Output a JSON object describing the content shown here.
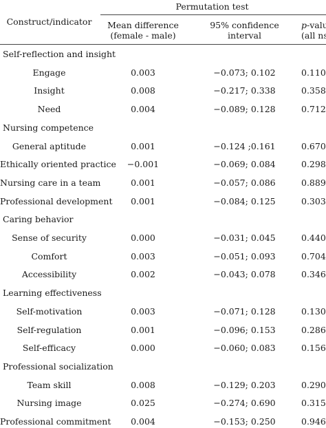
{
  "header": {
    "construct_label": "Construct/indicator",
    "permutation_label": "Permutation test",
    "col_mean_line1": "Mean difference",
    "col_mean_line2": "(female - male)",
    "col_ci_line1": "95% confidence",
    "col_ci_line2": "interval",
    "col_p_italic": "p",
    "col_p_rest": "-value",
    "col_p_line2": "(all ns)"
  },
  "sections": [
    {
      "title": "Self-reflection and insight",
      "rows": [
        {
          "indicator": "Engage",
          "mean": "0.003",
          "ci": "−0.073; 0.102",
          "p": "0.110"
        },
        {
          "indicator": "Insight",
          "mean": "0.008",
          "ci": "−0.217; 0.338",
          "p": "0.358"
        },
        {
          "indicator": "Need",
          "mean": "0.004",
          "ci": "−0.089; 0.128",
          "p": "0.712"
        }
      ]
    },
    {
      "title": "Nursing competence",
      "rows": [
        {
          "indicator": "General aptitude",
          "mean": "0.001",
          "ci": "−0.124 ;0.161",
          "p": "0.670"
        },
        {
          "indicator": "Ethically oriented practice",
          "mean": "−0.001",
          "ci": "−0.069; 0.084",
          "p": "0.298"
        },
        {
          "indicator": "Nursing care in a team",
          "mean": "0.001",
          "ci": "−0.057; 0.086",
          "p": "0.889"
        },
        {
          "indicator": "Professional development",
          "mean": "0.001",
          "ci": "−0.084; 0.125",
          "p": "0.303"
        }
      ]
    },
    {
      "title": "Caring behavior",
      "rows": [
        {
          "indicator": "Sense of security",
          "mean": "0.000",
          "ci": "−0.031; 0.045",
          "p": "0.440"
        },
        {
          "indicator": "Comfort",
          "mean": "0.003",
          "ci": "−0.051; 0.093",
          "p": "0.704"
        },
        {
          "indicator": "Accessibility",
          "mean": "0.002",
          "ci": "−0.043; 0.078",
          "p": "0.346"
        }
      ]
    },
    {
      "title": "Learning effectiveness",
      "rows": [
        {
          "indicator": "Self-motivation",
          "mean": "0.003",
          "ci": "−0.071; 0.128",
          "p": "0.130"
        },
        {
          "indicator": "Self-regulation",
          "mean": "0.001",
          "ci": "−0.096; 0.153",
          "p": "0.286"
        },
        {
          "indicator": "Self-efficacy",
          "mean": "0.000",
          "ci": "−0.060; 0.083",
          "p": "0.156"
        }
      ]
    },
    {
      "title": "Professional socialization",
      "rows": [
        {
          "indicator": "Team skill",
          "mean": "0.008",
          "ci": "−0.129; 0.203",
          "p": "0.290"
        },
        {
          "indicator": "Nursing image",
          "mean": "0.025",
          "ci": "−0.274; 0.690",
          "p": "0.315"
        },
        {
          "indicator": "Professional commitment",
          "mean": "0.004",
          "ci": "−0.153; 0.250",
          "p": "0.946"
        }
      ]
    }
  ]
}
